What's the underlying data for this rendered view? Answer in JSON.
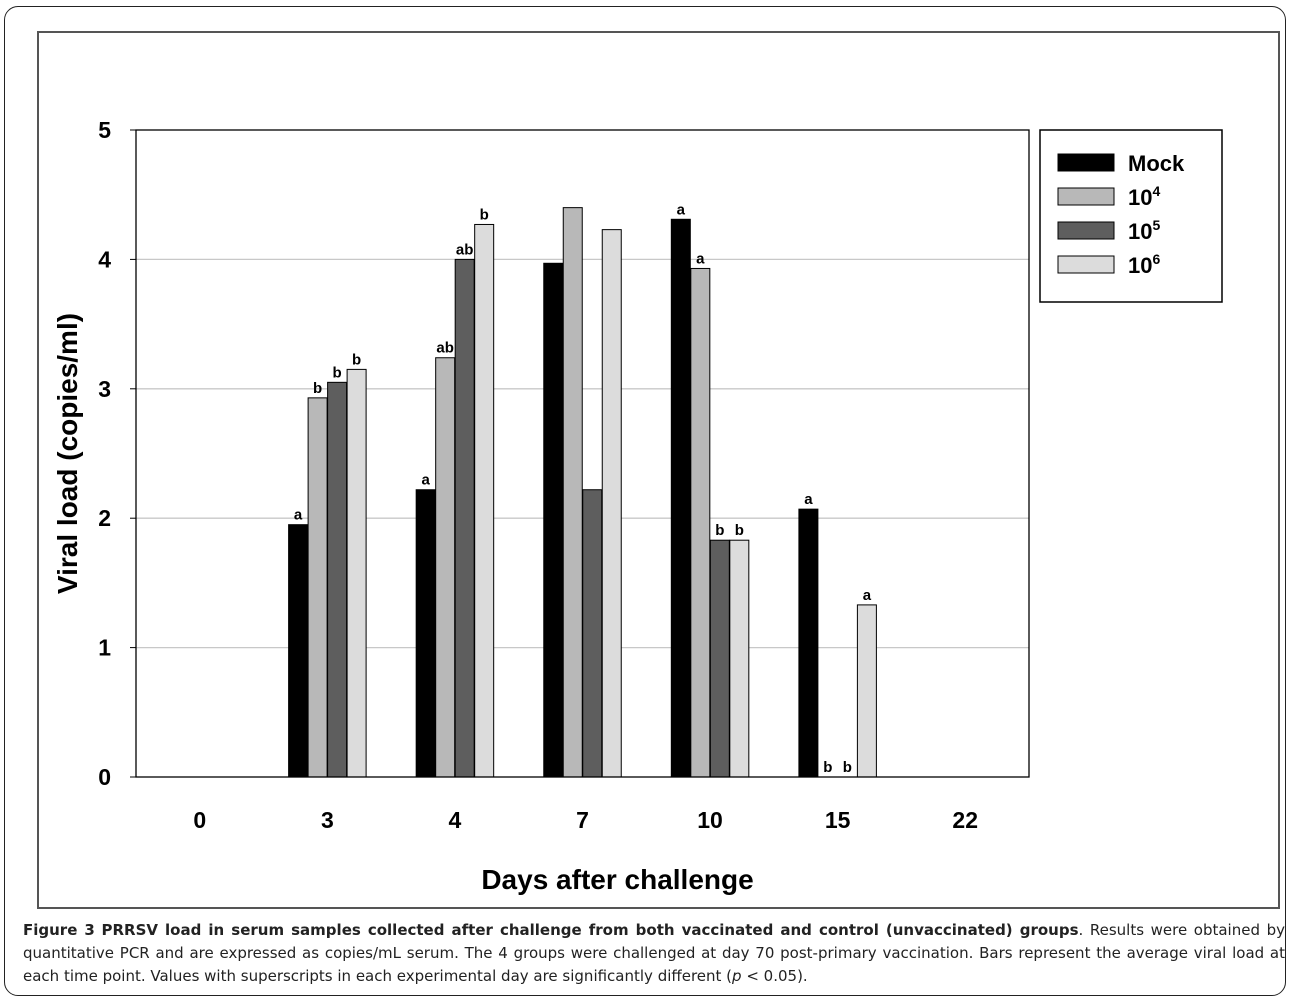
{
  "chart_data": {
    "type": "bar",
    "xlabel": "Days after challenge",
    "ylabel": "Viral load (copies/ml)",
    "ylim": [
      0,
      5
    ],
    "yticks": [
      "0",
      "1",
      "2",
      "3",
      "4",
      "5"
    ],
    "grid": "horizontal",
    "legend_position": "top-right",
    "categories": [
      "0",
      "3",
      "4",
      "7",
      "10",
      "15",
      "22"
    ],
    "series": [
      {
        "name": "Mock",
        "exp": "",
        "color": "#000000",
        "values": [
          0,
          1.95,
          2.22,
          3.97,
          4.31,
          2.07,
          0
        ],
        "labels": [
          "",
          "a",
          "a",
          "",
          "a",
          "a",
          ""
        ]
      },
      {
        "name": "10",
        "exp": "4",
        "color": "#b8b8b8",
        "values": [
          0,
          2.93,
          3.24,
          4.4,
          3.93,
          0,
          0
        ],
        "labels": [
          "",
          "b",
          "ab",
          "",
          "a",
          "b",
          ""
        ]
      },
      {
        "name": "10",
        "exp": "5",
        "color": "#5e5e5e",
        "values": [
          0,
          3.05,
          4.0,
          2.22,
          1.83,
          0,
          0
        ],
        "labels": [
          "",
          "b",
          "ab",
          "",
          "b",
          "b",
          ""
        ]
      },
      {
        "name": "10",
        "exp": "6",
        "color": "#dcdcdc",
        "values": [
          0,
          3.15,
          4.27,
          4.23,
          1.83,
          1.33,
          0
        ],
        "labels": [
          "",
          "b",
          "b",
          "",
          "b",
          "a",
          ""
        ]
      }
    ]
  },
  "caption": {
    "label": "Figure 3",
    "title": "PRRSV load in serum samples collected after challenge from both vaccinated and control (unvaccinated) groups",
    "text_1": ". Results were obtained by quantitative PCR and are expressed as copies/mL serum. The 4 groups were challenged at day 70 post-primary vaccination. Bars represent the average viral load at each time point. Values with superscripts in each experimental day are significantly different (",
    "p_symbol": "p",
    "text_2": " < 0.05)."
  }
}
